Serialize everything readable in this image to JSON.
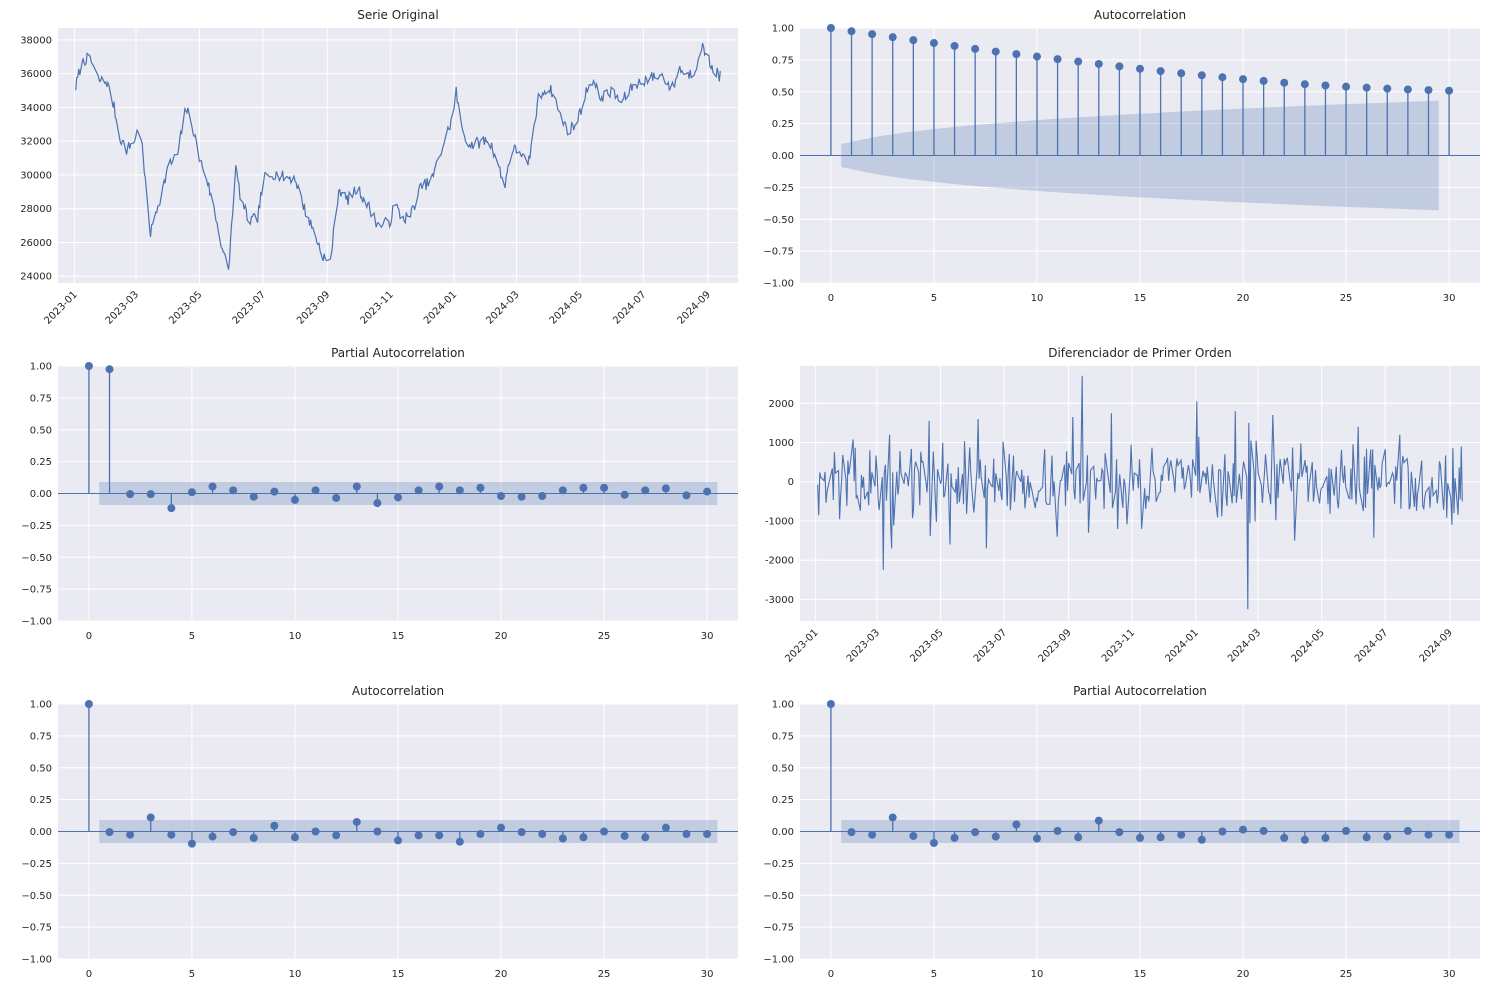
{
  "figure": {
    "background": "#ffffff",
    "axes_background": "#eaeaf2",
    "grid_color": "#ffffff",
    "series_color": "#4c72b0",
    "band_color": "#4c72b0"
  },
  "chart_data": [
    {
      "id": "serie-original",
      "type": "line",
      "title": "Serie Original",
      "x_type": "date",
      "x_start": "2023-01-02",
      "x_end": "2024-09-13",
      "xticks": [
        "2023-01",
        "2023-03",
        "2023-05",
        "2023-07",
        "2023-09",
        "2023-11",
        "2024-01",
        "2024-03",
        "2024-05",
        "2024-07",
        "2024-09"
      ],
      "ylim": [
        23600,
        38700
      ],
      "yticks": [
        24000,
        26000,
        28000,
        30000,
        32000,
        34000,
        36000,
        38000
      ],
      "anchors": [
        [
          "2023-01-02",
          35200
        ],
        [
          "2023-01-07",
          36500
        ],
        [
          "2023-01-12",
          36900
        ],
        [
          "2023-01-18",
          36600
        ],
        [
          "2023-01-24",
          35600
        ],
        [
          "2023-02-01",
          35500
        ],
        [
          "2023-02-08",
          34000
        ],
        [
          "2023-02-13",
          32300
        ],
        [
          "2023-02-20",
          31500
        ],
        [
          "2023-02-27",
          32000
        ],
        [
          "2023-03-05",
          33000
        ],
        [
          "2023-03-10",
          29500
        ],
        [
          "2023-03-15",
          26500
        ],
        [
          "2023-03-20",
          27800
        ],
        [
          "2023-03-26",
          29000
        ],
        [
          "2023-04-01",
          30500
        ],
        [
          "2023-04-10",
          31200
        ],
        [
          "2023-04-18",
          34000
        ],
        [
          "2023-04-24",
          33000
        ],
        [
          "2023-05-01",
          31000
        ],
        [
          "2023-05-08",
          29800
        ],
        [
          "2023-05-15",
          28000
        ],
        [
          "2023-05-23",
          25700
        ],
        [
          "2023-05-29",
          24200
        ],
        [
          "2023-06-02",
          28000
        ],
        [
          "2023-06-05",
          30400
        ],
        [
          "2023-06-10",
          28500
        ],
        [
          "2023-06-18",
          27200
        ],
        [
          "2023-06-26",
          27500
        ],
        [
          "2023-07-02",
          29800
        ],
        [
          "2023-07-10",
          30100
        ],
        [
          "2023-07-20",
          29900
        ],
        [
          "2023-08-01",
          29800
        ],
        [
          "2023-08-10",
          28000
        ],
        [
          "2023-08-18",
          26800
        ],
        [
          "2023-08-26",
          25500
        ],
        [
          "2023-09-03",
          24500
        ],
        [
          "2023-09-08",
          27000
        ],
        [
          "2023-09-12",
          29200
        ],
        [
          "2023-09-20",
          28500
        ],
        [
          "2023-09-30",
          29200
        ],
        [
          "2023-10-10",
          28200
        ],
        [
          "2023-10-20",
          27000
        ],
        [
          "2023-10-31",
          27200
        ],
        [
          "2023-11-05",
          28300
        ],
        [
          "2023-11-12",
          27400
        ],
        [
          "2023-11-20",
          27600
        ],
        [
          "2023-11-30",
          29300
        ],
        [
          "2023-12-10",
          29600
        ],
        [
          "2023-12-20",
          31500
        ],
        [
          "2023-12-31",
          33500
        ],
        [
          "2024-01-03",
          35000
        ],
        [
          "2024-01-07",
          33000
        ],
        [
          "2024-01-15",
          31800
        ],
        [
          "2024-01-25",
          31900
        ],
        [
          "2024-02-03",
          32100
        ],
        [
          "2024-02-11",
          31000
        ],
        [
          "2024-02-18",
          29200
        ],
        [
          "2024-02-25",
          31500
        ],
        [
          "2024-03-05",
          31400
        ],
        [
          "2024-03-12",
          30400
        ],
        [
          "2024-03-22",
          34500
        ],
        [
          "2024-03-30",
          35200
        ],
        [
          "2024-04-05",
          34900
        ],
        [
          "2024-04-12",
          33500
        ],
        [
          "2024-04-20",
          32600
        ],
        [
          "2024-04-28",
          33100
        ],
        [
          "2024-05-05",
          34500
        ],
        [
          "2024-05-12",
          35800
        ],
        [
          "2024-05-20",
          34600
        ],
        [
          "2024-06-01",
          34900
        ],
        [
          "2024-06-10",
          34300
        ],
        [
          "2024-06-20",
          35200
        ],
        [
          "2024-07-01",
          35600
        ],
        [
          "2024-07-10",
          35800
        ],
        [
          "2024-07-20",
          35900
        ],
        [
          "2024-07-28",
          35000
        ],
        [
          "2024-08-05",
          36300
        ],
        [
          "2024-08-12",
          35900
        ],
        [
          "2024-08-20",
          36200
        ],
        [
          "2024-08-25",
          37800
        ],
        [
          "2024-08-31",
          37000
        ],
        [
          "2024-09-05",
          36400
        ],
        [
          "2024-09-13",
          35800
        ]
      ]
    },
    {
      "id": "acf-original",
      "type": "stem",
      "title": "Autocorrelation",
      "xlim": [
        -1.5,
        31.5
      ],
      "xticks": [
        0,
        5,
        10,
        15,
        20,
        25,
        30
      ],
      "ylim": [
        -1.0,
        1.0
      ],
      "yticks": [
        "1.00",
        "0.75",
        "0.50",
        "0.25",
        "0.00",
        "−0.25",
        "−0.50",
        "−0.75",
        "−1.00"
      ],
      "values": [
        1.0,
        0.975,
        0.952,
        0.928,
        0.905,
        0.882,
        0.859,
        0.836,
        0.815,
        0.795,
        0.776,
        0.756,
        0.737,
        0.718,
        0.699,
        0.68,
        0.662,
        0.645,
        0.629,
        0.614,
        0.599,
        0.585,
        0.571,
        0.559,
        0.549,
        0.54,
        0.532,
        0.525,
        0.518,
        0.513,
        0.508
      ],
      "conf_band": [
        0.09,
        0.125,
        0.155,
        0.178,
        0.198,
        0.216,
        0.232,
        0.246,
        0.259,
        0.271,
        0.283,
        0.294,
        0.304,
        0.314,
        0.323,
        0.332,
        0.341,
        0.349,
        0.357,
        0.365,
        0.372,
        0.379,
        0.386,
        0.393,
        0.4,
        0.406,
        0.412,
        0.418,
        0.424,
        0.43
      ]
    },
    {
      "id": "pacf-original",
      "type": "stem",
      "title": "Partial Autocorrelation",
      "xlim": [
        -1.5,
        31.5
      ],
      "xticks": [
        0,
        5,
        10,
        15,
        20,
        25,
        30
      ],
      "ylim": [
        -1.0,
        1.0
      ],
      "yticks": [
        "1.00",
        "0.75",
        "0.50",
        "0.25",
        "0.00",
        "−0.25",
        "−0.50",
        "−0.75",
        "−1.00"
      ],
      "values": [
        1.0,
        0.975,
        -0.005,
        -0.005,
        -0.115,
        0.01,
        0.055,
        0.025,
        -0.025,
        0.015,
        -0.05,
        0.025,
        -0.035,
        0.055,
        -0.075,
        -0.03,
        0.025,
        0.055,
        0.025,
        0.045,
        -0.02,
        -0.025,
        -0.02,
        0.025,
        0.045,
        0.045,
        -0.01,
        0.025,
        0.04,
        -0.015,
        0.015
      ],
      "conf_band": 0.09
    },
    {
      "id": "diferenciador",
      "type": "line",
      "title": "Diferenciador de Primer Orden",
      "x_type": "date",
      "x_start": "2023-01-03",
      "x_end": "2024-09-13",
      "xticks": [
        "2023-01",
        "2023-03",
        "2023-05",
        "2023-07",
        "2023-09",
        "2023-11",
        "2024-01",
        "2024-03",
        "2024-05",
        "2024-07",
        "2024-09"
      ],
      "ylim": [
        -3550,
        2950
      ],
      "yticks": [
        2000,
        1000,
        0,
        -1000,
        -2000,
        -3000
      ],
      "spikes": [
        [
          "2023-03-07",
          -2250
        ],
        [
          "2023-03-15",
          -1700
        ],
        [
          "2023-04-20",
          1550
        ],
        [
          "2023-05-10",
          -1600
        ],
        [
          "2023-06-06",
          1600
        ],
        [
          "2023-06-14",
          -1700
        ],
        [
          "2023-07-15",
          1750
        ],
        [
          "2023-08-21",
          -1400
        ],
        [
          "2023-09-05",
          1650
        ],
        [
          "2023-09-10",
          -1100
        ],
        [
          "2023-09-14",
          2700
        ],
        [
          "2023-09-20",
          -1300
        ],
        [
          "2023-10-12",
          1750
        ],
        [
          "2023-11-10",
          -1200
        ],
        [
          "2023-12-02",
          1600
        ],
        [
          "2024-01-02",
          2050
        ],
        [
          "2024-01-06",
          -1200
        ],
        [
          "2024-02-08",
          1800
        ],
        [
          "2024-02-20",
          -3250
        ],
        [
          "2024-02-21",
          1500
        ],
        [
          "2024-03-15",
          1700
        ],
        [
          "2024-04-05",
          -1500
        ],
        [
          "2024-04-20",
          1450
        ],
        [
          "2024-06-05",
          1400
        ],
        [
          "2024-07-15",
          1200
        ],
        [
          "2024-08-25",
          1800
        ],
        [
          "2024-09-03",
          -1100
        ]
      ]
    },
    {
      "id": "acf-diff",
      "type": "stem",
      "title": "Autocorrelation",
      "xlim": [
        -1.5,
        31.5
      ],
      "xticks": [
        0,
        5,
        10,
        15,
        20,
        25,
        30
      ],
      "ylim": [
        -1.0,
        1.0
      ],
      "yticks": [
        "1.00",
        "0.75",
        "0.50",
        "0.25",
        "0.00",
        "−0.25",
        "−0.50",
        "−0.75",
        "−1.00"
      ],
      "values": [
        1.0,
        -0.005,
        -0.025,
        0.11,
        -0.025,
        -0.095,
        -0.04,
        -0.005,
        -0.05,
        0.045,
        -0.045,
        0.0,
        -0.03,
        0.075,
        0.0,
        -0.07,
        -0.03,
        -0.03,
        -0.08,
        -0.02,
        0.03,
        -0.005,
        -0.02,
        -0.055,
        -0.045,
        0.0,
        -0.035,
        -0.045,
        0.03,
        -0.02,
        -0.02
      ],
      "conf_band": 0.09
    },
    {
      "id": "pacf-diff",
      "type": "stem",
      "title": "Partial Autocorrelation",
      "xlim": [
        -1.5,
        31.5
      ],
      "xticks": [
        0,
        5,
        10,
        15,
        20,
        25,
        30
      ],
      "ylim": [
        -1.0,
        1.0
      ],
      "yticks": [
        "1.00",
        "0.75",
        "0.50",
        "0.25",
        "0.00",
        "−0.25",
        "−0.50",
        "−0.75",
        "−1.00"
      ],
      "values": [
        1.0,
        -0.005,
        -0.025,
        0.11,
        -0.035,
        -0.09,
        -0.05,
        -0.005,
        -0.04,
        0.055,
        -0.055,
        0.005,
        -0.045,
        0.085,
        -0.005,
        -0.05,
        -0.045,
        -0.025,
        -0.065,
        0.0,
        0.015,
        0.005,
        -0.05,
        -0.065,
        -0.05,
        0.005,
        -0.045,
        -0.04,
        0.005,
        -0.025,
        -0.025
      ],
      "conf_band": 0.09
    }
  ]
}
